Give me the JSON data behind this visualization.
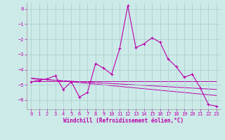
{
  "xlabel": "Windchill (Refroidissement éolien,°C)",
  "background_color": "#cceae8",
  "grid_color": "#aacccc",
  "line_color": "#bb00aa",
  "x_values": [
    0,
    1,
    2,
    3,
    4,
    5,
    6,
    7,
    8,
    9,
    10,
    11,
    12,
    13,
    14,
    15,
    16,
    17,
    18,
    19,
    20,
    21,
    22,
    23
  ],
  "series_main": [
    -4.8,
    -4.7,
    -4.6,
    -4.4,
    -5.3,
    -4.8,
    -5.8,
    -5.5,
    -3.6,
    -3.9,
    -4.3,
    -2.6,
    0.2,
    -2.55,
    -2.3,
    -1.9,
    -2.2,
    -3.3,
    -3.8,
    -4.5,
    -4.3,
    -5.2,
    -6.3,
    -6.4
  ],
  "series_flat1": [
    -4.75,
    -4.75,
    -4.75,
    -4.75,
    -4.75,
    -4.75,
    -4.75,
    -4.75,
    -4.75,
    -4.75,
    -4.75,
    -4.75,
    -4.75,
    -4.75,
    -4.75,
    -4.75,
    -4.75,
    -4.75,
    -4.75,
    -4.75,
    -4.75,
    -4.75,
    -4.75,
    -4.75
  ],
  "series_linear1": [
    -4.6,
    -4.63,
    -4.66,
    -4.7,
    -4.73,
    -4.76,
    -4.79,
    -4.82,
    -4.85,
    -4.88,
    -4.91,
    -4.94,
    -4.97,
    -5.0,
    -5.03,
    -5.06,
    -5.09,
    -5.12,
    -5.15,
    -5.18,
    -5.21,
    -5.24,
    -5.27,
    -5.3
  ],
  "series_linear2": [
    -4.55,
    -4.6,
    -4.65,
    -4.7,
    -4.75,
    -4.8,
    -4.85,
    -4.9,
    -4.95,
    -5.0,
    -5.05,
    -5.1,
    -5.15,
    -5.2,
    -5.25,
    -5.3,
    -5.35,
    -5.4,
    -5.45,
    -5.5,
    -5.55,
    -5.6,
    -5.65,
    -5.7
  ],
  "ylim": [
    -6.6,
    0.4
  ],
  "xlim": [
    -0.5,
    23.5
  ],
  "yticks": [
    0,
    -1,
    -2,
    -3,
    -4,
    -5,
    -6
  ],
  "xticks": [
    0,
    1,
    2,
    3,
    4,
    5,
    6,
    7,
    8,
    9,
    10,
    11,
    12,
    13,
    14,
    15,
    16,
    17,
    18,
    19,
    20,
    21,
    22,
    23
  ]
}
